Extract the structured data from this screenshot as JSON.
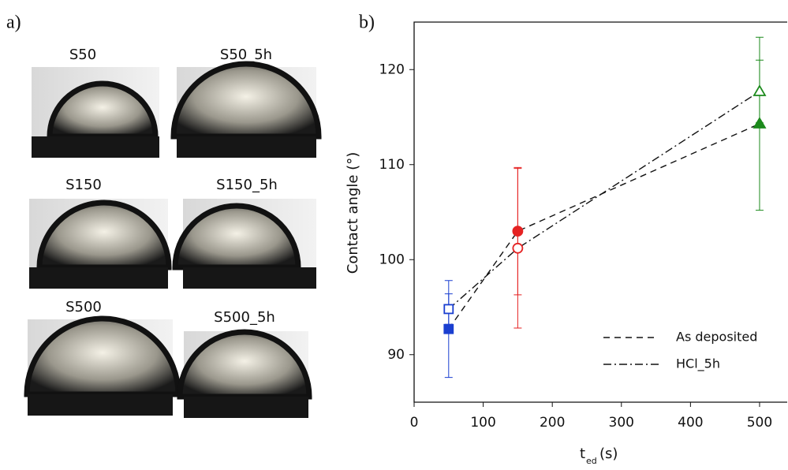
{
  "panel_a": {
    "label": "a)",
    "images": [
      "S50",
      "S50_5h",
      "S150",
      "S150_5h",
      "S500",
      "S500_5h"
    ]
  },
  "chart_data": {
    "type": "scatter",
    "panel_label": "b)",
    "ylabel": "Contact angle (°)",
    "xlabel": "t",
    "xlabel_sub": "ed",
    "xlabel_unit": "(s)",
    "x": [
      50,
      150,
      500
    ],
    "xlim": [
      0,
      540
    ],
    "xticks": [
      0,
      100,
      200,
      300,
      400,
      500
    ],
    "ylim": [
      85,
      125
    ],
    "yticks": [
      90,
      100,
      110,
      120
    ],
    "colors": [
      "#1a3fd0",
      "#e52222",
      "#1c8a1c"
    ],
    "markers": [
      "square",
      "circle",
      "triangle"
    ],
    "legend": "lower right",
    "series": [
      {
        "name": "As deposited",
        "values": [
          92.7,
          103.0,
          114.3
        ],
        "errors": [
          5.1,
          6.7,
          9.1
        ],
        "filled": true,
        "dash": "8,6"
      },
      {
        "name": "HCl_5h",
        "values": [
          94.8,
          101.2,
          117.7
        ],
        "errors": [
          1.6,
          8.4,
          3.3
        ],
        "filled": false,
        "dash": "10,4,2,4"
      }
    ]
  }
}
